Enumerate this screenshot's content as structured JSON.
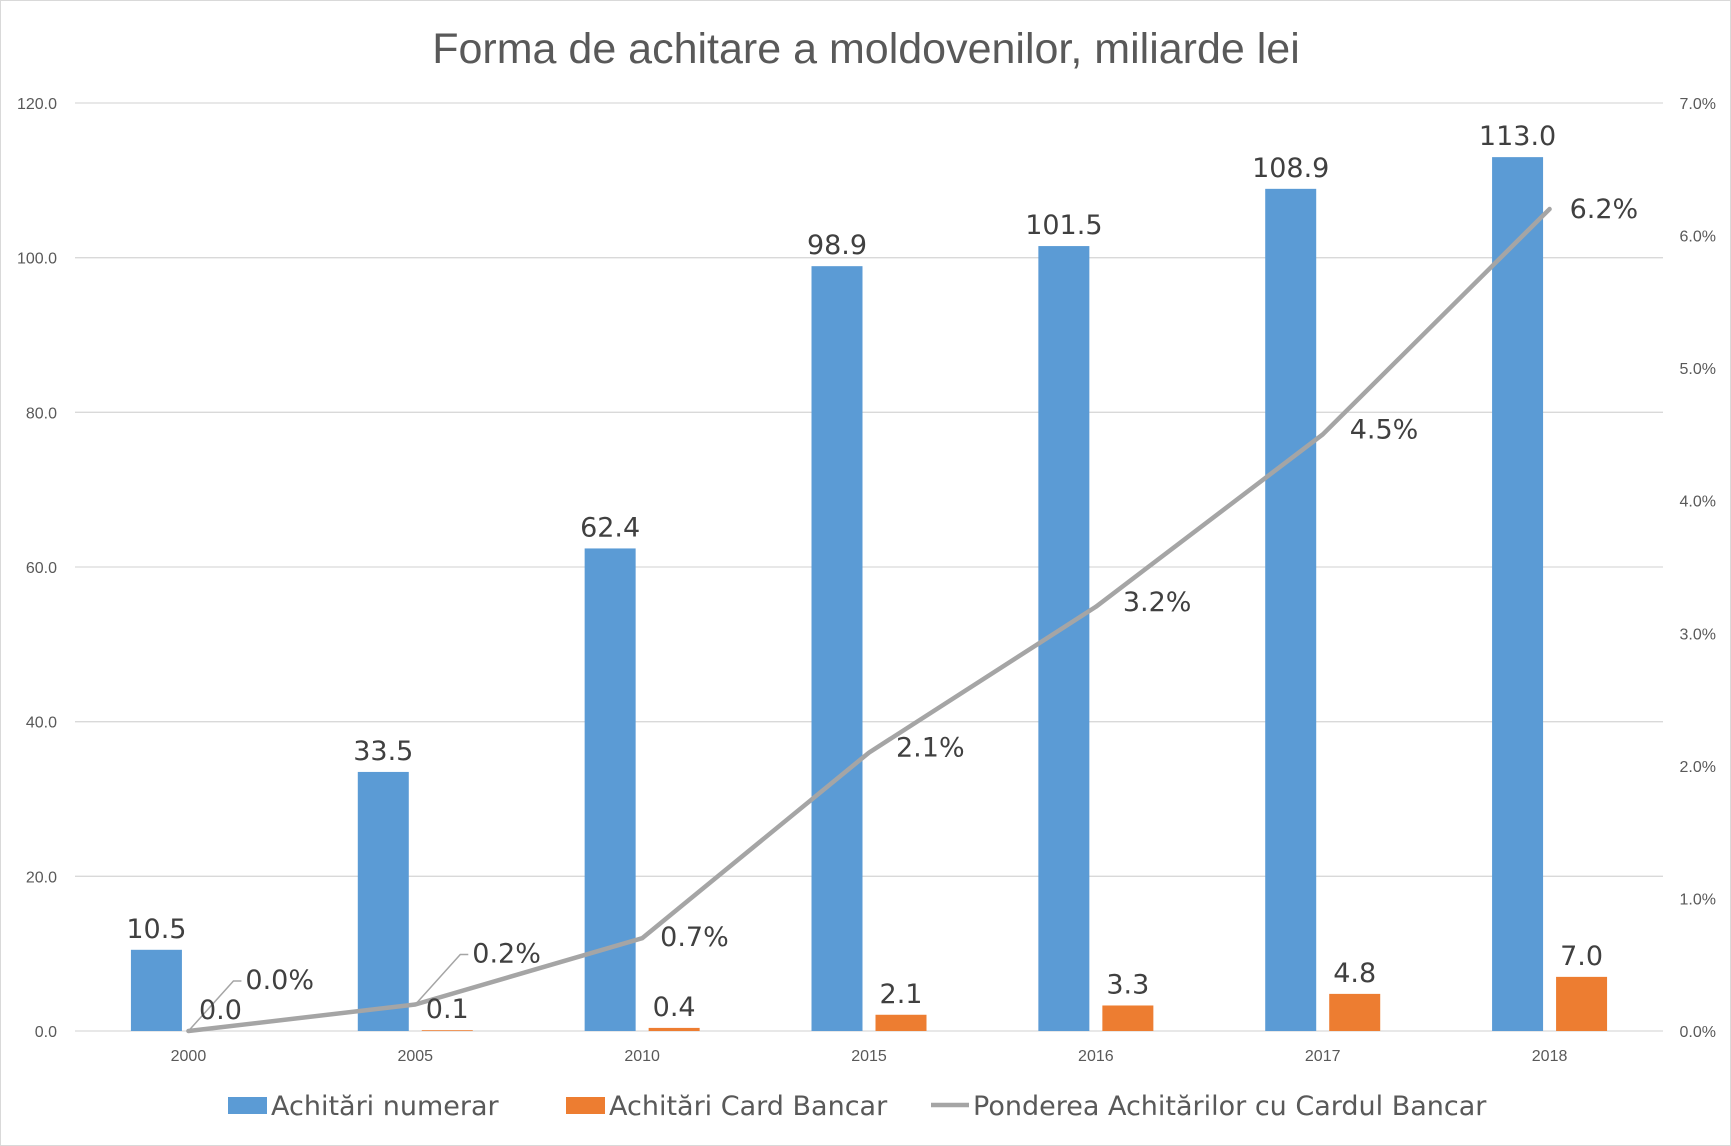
{
  "chart_data": {
    "type": "bar",
    "title": "Forma de achitare a moldovenilor, miliarde lei",
    "categories": [
      "2000",
      "2005",
      "2010",
      "2015",
      "2016",
      "2017",
      "2018"
    ],
    "ylim": [
      0,
      120
    ],
    "y2lim": [
      0,
      7
    ],
    "y_ticks": [
      "0.0",
      "20.0",
      "40.0",
      "60.0",
      "80.0",
      "100.0",
      "120.0"
    ],
    "y2_ticks": [
      "0.0%",
      "1.0%",
      "2.0%",
      "3.0%",
      "4.0%",
      "5.0%",
      "6.0%",
      "7.0%"
    ],
    "grid": true,
    "legend_position": "bottom",
    "series": [
      {
        "name": "Achitări numerar",
        "type": "bar",
        "axis": "left",
        "color": "#5b9bd5",
        "values": [
          10.5,
          33.5,
          62.4,
          98.9,
          101.5,
          108.9,
          113.0
        ],
        "labels": [
          "10.5",
          "33.5",
          "62.4",
          "98.9",
          "101.5",
          "108.9",
          "113.0"
        ]
      },
      {
        "name": "Achitări Card Bancar",
        "type": "bar",
        "axis": "left",
        "color": "#ed7d31",
        "values": [
          0.0,
          0.1,
          0.4,
          2.1,
          3.3,
          4.8,
          7.0
        ],
        "labels": [
          "0.0",
          "0.1",
          "0.4",
          "2.1",
          "3.3",
          "4.8",
          "7.0"
        ]
      },
      {
        "name": "Ponderea Achitărilor cu Cardul Bancar",
        "type": "line",
        "axis": "right",
        "color": "#a5a5a5",
        "values": [
          0.0,
          0.2,
          0.7,
          2.1,
          3.2,
          4.5,
          6.2
        ],
        "labels": [
          "0.0%",
          "0.2%",
          "0.7%",
          "2.1%",
          "3.2%",
          "4.5%",
          "6.2%"
        ]
      }
    ]
  }
}
